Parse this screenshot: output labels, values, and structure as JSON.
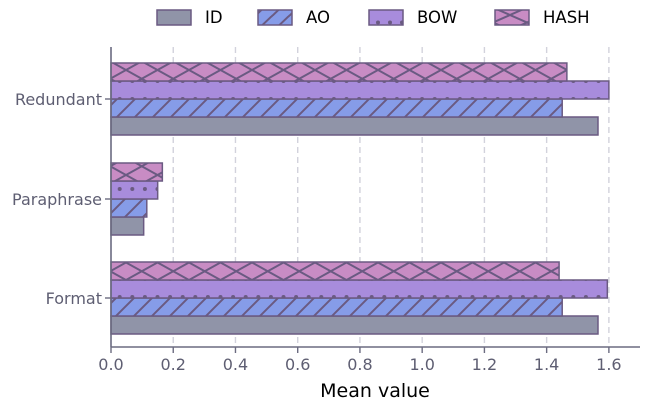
{
  "chart_data": {
    "type": "bar",
    "orientation": "horizontal",
    "title": "",
    "xlabel": "Mean value",
    "ylabel": "",
    "xlim": [
      0.0,
      1.7
    ],
    "x_ticks": [
      "0.0",
      "0.2",
      "0.4",
      "0.6",
      "0.8",
      "1.0",
      "1.2",
      "1.4",
      "1.6"
    ],
    "categories": [
      "Redundant",
      "Paraphrase",
      "Format"
    ],
    "grid": "vertical dashed",
    "legend_position": "top",
    "series": [
      {
        "name": "ID",
        "values": [
          1.565,
          0.105,
          1.565
        ],
        "color": "#9094a8",
        "hatch": "none"
      },
      {
        "name": "AO",
        "values": [
          1.45,
          0.115,
          1.45
        ],
        "color": "#869ce8",
        "hatch": "diagonal"
      },
      {
        "name": "BOW",
        "values": [
          1.6,
          0.15,
          1.595
        ],
        "color": "#a88cdc",
        "hatch": "dots"
      },
      {
        "name": "HASH",
        "values": [
          1.465,
          0.165,
          1.44
        ],
        "color": "#c88cc4",
        "hatch": "crosshatch"
      }
    ],
    "colors": {
      "edge": "#6a5a82",
      "axis": "#6b6b80",
      "tick_text": "#5e5e72",
      "grid": "#d2d2dc"
    }
  }
}
